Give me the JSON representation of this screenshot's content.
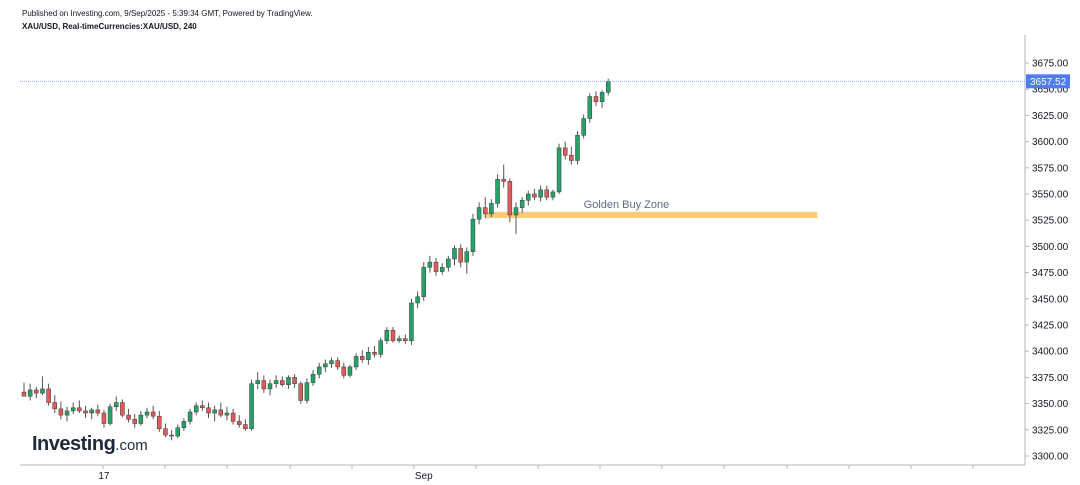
{
  "header": {
    "published": "Published on Investing.com, 9/Sep/2025 - 5:39:34 GMT, Powered by TradingView.",
    "symbol": "XAU/USD, Real-timeCurrencies:XAU/USD, 240"
  },
  "logo": {
    "main": "Investing",
    "suffix": ".com"
  },
  "colors": {
    "up": "#26a269",
    "down": "#e05a5a",
    "zone": "#fbcb7a",
    "price_label": "#4f7cf0",
    "price_line": "#8fa8f0"
  },
  "chart_data": {
    "type": "candlestick",
    "ylim": [
      3295,
      3685
    ],
    "y_ticks": [
      "3300.00",
      "3325.00",
      "3350.00",
      "3375.00",
      "3400.00",
      "3425.00",
      "3450.00",
      "3475.00",
      "3500.00",
      "3525.00",
      "3550.00",
      "3575.00",
      "3600.00",
      "3625.00",
      "3650.00",
      "3675.00"
    ],
    "x_labels": [
      {
        "label": "17",
        "index": 13
      },
      {
        "label": "Sep",
        "index": 65
      }
    ],
    "last_price": 3657.52,
    "last_price_label": "3657.52",
    "zone": {
      "label": "Golden Buy Zone",
      "low": 3527,
      "high": 3533,
      "from_index": 75,
      "to_index": 129
    },
    "candles": [
      [
        3361,
        3370,
        3357,
        3357
      ],
      [
        3357,
        3369,
        3353,
        3363
      ],
      [
        3363,
        3366,
        3355,
        3360
      ],
      [
        3360,
        3376,
        3358,
        3364
      ],
      [
        3364,
        3369,
        3348,
        3351
      ],
      [
        3351,
        3358,
        3341,
        3345
      ],
      [
        3345,
        3352,
        3335,
        3339
      ],
      [
        3339,
        3347,
        3333,
        3343
      ],
      [
        3343,
        3351,
        3340,
        3346
      ],
      [
        3346,
        3353,
        3341,
        3343
      ],
      [
        3343,
        3348,
        3336,
        3341
      ],
      [
        3341,
        3346,
        3335,
        3344
      ],
      [
        3344,
        3349,
        3338,
        3341
      ],
      [
        3341,
        3344,
        3327,
        3331
      ],
      [
        3331,
        3350,
        3329,
        3347
      ],
      [
        3347,
        3357,
        3343,
        3351
      ],
      [
        3351,
        3354,
        3337,
        3339
      ],
      [
        3339,
        3345,
        3332,
        3335
      ],
      [
        3335,
        3340,
        3327,
        3331
      ],
      [
        3331,
        3343,
        3329,
        3339
      ],
      [
        3339,
        3346,
        3336,
        3342
      ],
      [
        3342,
        3348,
        3335,
        3338
      ],
      [
        3338,
        3343,
        3323,
        3326
      ],
      [
        3326,
        3331,
        3318,
        3320
      ],
      [
        3320,
        3325,
        3315,
        3319
      ],
      [
        3319,
        3330,
        3317,
        3327
      ],
      [
        3327,
        3336,
        3324,
        3333
      ],
      [
        3333,
        3345,
        3330,
        3342
      ],
      [
        3342,
        3351,
        3339,
        3348
      ],
      [
        3348,
        3353,
        3343,
        3346
      ],
      [
        3346,
        3351,
        3336,
        3341
      ],
      [
        3341,
        3348,
        3333,
        3344
      ],
      [
        3344,
        3351,
        3337,
        3339
      ],
      [
        3339,
        3347,
        3334,
        3341
      ],
      [
        3341,
        3345,
        3330,
        3333
      ],
      [
        3333,
        3339,
        3327,
        3330
      ],
      [
        3330,
        3335,
        3324,
        3326
      ],
      [
        3326,
        3373,
        3324,
        3369
      ],
      [
        3369,
        3380,
        3364,
        3372
      ],
      [
        3372,
        3377,
        3360,
        3364
      ],
      [
        3364,
        3373,
        3358,
        3369
      ],
      [
        3369,
        3377,
        3365,
        3372
      ],
      [
        3372,
        3376,
        3366,
        3368
      ],
      [
        3368,
        3377,
        3364,
        3375
      ],
      [
        3375,
        3378,
        3365,
        3369
      ],
      [
        3369,
        3371,
        3350,
        3353
      ],
      [
        3353,
        3374,
        3350,
        3370
      ],
      [
        3370,
        3382,
        3367,
        3378
      ],
      [
        3378,
        3389,
        3374,
        3385
      ],
      [
        3385,
        3392,
        3380,
        3388
      ],
      [
        3388,
        3394,
        3384,
        3391
      ],
      [
        3391,
        3394,
        3382,
        3385
      ],
      [
        3385,
        3389,
        3374,
        3377
      ],
      [
        3377,
        3387,
        3375,
        3385
      ],
      [
        3385,
        3398,
        3382,
        3395
      ],
      [
        3395,
        3401,
        3389,
        3392
      ],
      [
        3392,
        3404,
        3387,
        3399
      ],
      [
        3399,
        3405,
        3394,
        3397
      ],
      [
        3397,
        3413,
        3394,
        3410
      ],
      [
        3410,
        3423,
        3407,
        3420
      ],
      [
        3420,
        3423,
        3408,
        3410
      ],
      [
        3410,
        3415,
        3408,
        3412
      ],
      [
        3412,
        3416,
        3407,
        3410
      ],
      [
        3410,
        3450,
        3406,
        3446
      ],
      [
        3446,
        3457,
        3441,
        3452
      ],
      [
        3452,
        3485,
        3448,
        3480
      ],
      [
        3480,
        3491,
        3475,
        3485
      ],
      [
        3485,
        3489,
        3472,
        3476
      ],
      [
        3476,
        3484,
        3473,
        3480
      ],
      [
        3480,
        3491,
        3476,
        3488
      ],
      [
        3488,
        3501,
        3482,
        3498
      ],
      [
        3498,
        3502,
        3480,
        3485
      ],
      [
        3485,
        3499,
        3474,
        3495
      ],
      [
        3495,
        3531,
        3491,
        3526
      ],
      [
        3526,
        3542,
        3521,
        3537
      ],
      [
        3537,
        3547,
        3527,
        3531
      ],
      [
        3531,
        3545,
        3528,
        3541
      ],
      [
        3541,
        3569,
        3537,
        3564
      ],
      [
        3564,
        3578,
        3556,
        3562
      ],
      [
        3562,
        3565,
        3523,
        3530
      ],
      [
        3530,
        3542,
        3512,
        3537
      ],
      [
        3537,
        3547,
        3532,
        3544
      ],
      [
        3544,
        3553,
        3539,
        3550
      ],
      [
        3550,
        3555,
        3544,
        3547
      ],
      [
        3547,
        3558,
        3543,
        3554
      ],
      [
        3554,
        3558,
        3544,
        3547
      ],
      [
        3547,
        3554,
        3544,
        3552
      ],
      [
        3552,
        3598,
        3550,
        3594
      ],
      [
        3594,
        3600,
        3583,
        3587
      ],
      [
        3587,
        3595,
        3578,
        3582
      ],
      [
        3582,
        3610,
        3578,
        3606
      ],
      [
        3606,
        3626,
        3603,
        3622
      ],
      [
        3622,
        3646,
        3618,
        3643
      ],
      [
        3643,
        3648,
        3634,
        3638
      ],
      [
        3638,
        3649,
        3632,
        3647
      ],
      [
        3647,
        3660,
        3644,
        3657.52
      ]
    ]
  }
}
